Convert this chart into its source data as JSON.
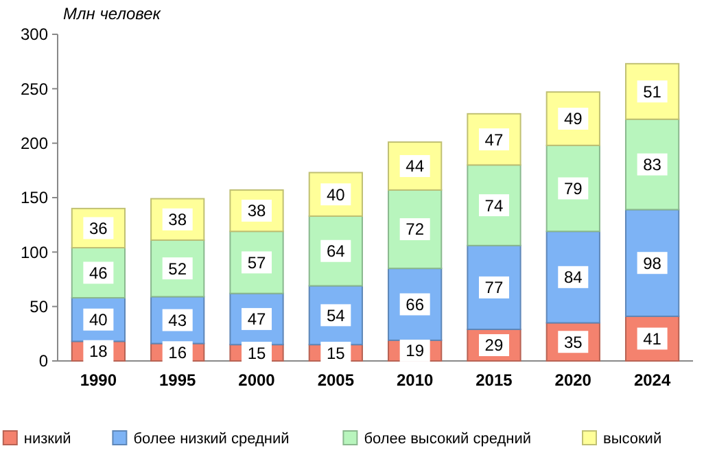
{
  "chart_data": {
    "type": "bar",
    "stacked": true,
    "ylabel": "Млн человек",
    "categories": [
      "1990",
      "1995",
      "2000",
      "2005",
      "2010",
      "2015",
      "2020",
      "2024"
    ],
    "series": [
      {
        "name": "низкий",
        "color": "#f4826e",
        "values": [
          18,
          16,
          15,
          15,
          19,
          29,
          35,
          41
        ]
      },
      {
        "name": "более низкий средний",
        "color": "#7db3f5",
        "values": [
          40,
          43,
          47,
          54,
          66,
          77,
          84,
          98
        ]
      },
      {
        "name": "более высокий средний",
        "color": "#b8f5bd",
        "values": [
          46,
          52,
          57,
          64,
          72,
          74,
          79,
          83
        ]
      },
      {
        "name": "высокий",
        "color": "#ffff99",
        "values": [
          36,
          38,
          38,
          40,
          44,
          47,
          49,
          51
        ]
      }
    ],
    "ylim": [
      0,
      300
    ],
    "yticks": [
      0,
      50,
      100,
      150,
      200,
      250,
      300
    ],
    "data_labels": true,
    "legend": "bottom"
  }
}
